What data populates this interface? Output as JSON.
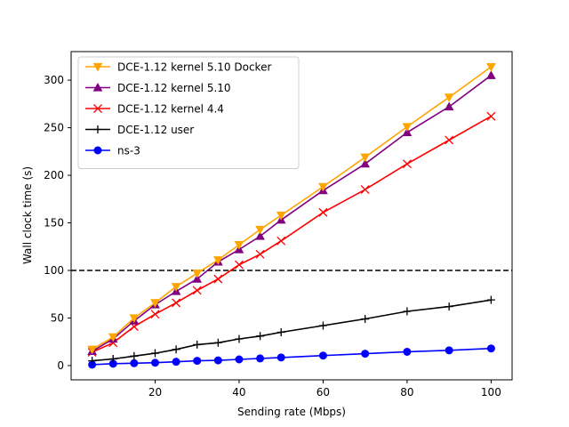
{
  "chart_data": {
    "type": "line",
    "xlabel": "Sending rate (Mbps)",
    "ylabel": "Wall clock time (s)",
    "xlim": [
      0,
      105
    ],
    "ylim": [
      -15,
      330
    ],
    "xticks": [
      20,
      40,
      60,
      80,
      100
    ],
    "yticks": [
      0,
      50,
      100,
      150,
      200,
      250,
      300
    ],
    "grid": false,
    "legend": "top-left",
    "reference_line": {
      "y": 100,
      "style": "dashed",
      "color": "#000000"
    },
    "x": [
      5,
      10,
      15,
      20,
      25,
      30,
      35,
      40,
      45,
      50,
      60,
      70,
      80,
      90,
      100
    ],
    "series": [
      {
        "name": "DCE-1.12 kernel 5.10 Docker",
        "color": "#ffa500",
        "marker": "triangle-down",
        "values": [
          17,
          30,
          50,
          66,
          83,
          97,
          111,
          127,
          143,
          158,
          188,
          219,
          251,
          282,
          314
        ]
      },
      {
        "name": "DCE-1.12 kernel 5.10",
        "color": "#800080",
        "marker": "triangle-up",
        "values": [
          15,
          28,
          47,
          64,
          78,
          91,
          109,
          122,
          136,
          153,
          184,
          212,
          245,
          272,
          305
        ]
      },
      {
        "name": "DCE-1.12 kernel 4.4",
        "color": "#ff0000",
        "marker": "x",
        "values": [
          14,
          24,
          41,
          54,
          66,
          79,
          91,
          106,
          117,
          131,
          161,
          185,
          212,
          237,
          262
        ]
      },
      {
        "name": "DCE-1.12 user",
        "color": "#000000",
        "marker": "plus",
        "values": [
          5,
          7,
          10,
          13,
          17,
          22,
          24,
          28,
          31,
          35,
          42,
          49,
          57,
          62,
          69
        ]
      },
      {
        "name": "ns-3",
        "color": "#0000ff",
        "marker": "circle",
        "values": [
          1,
          2,
          2.5,
          3,
          4,
          5,
          5.5,
          6.5,
          7.5,
          8.5,
          10.5,
          12.5,
          14.5,
          16,
          18
        ]
      }
    ]
  }
}
